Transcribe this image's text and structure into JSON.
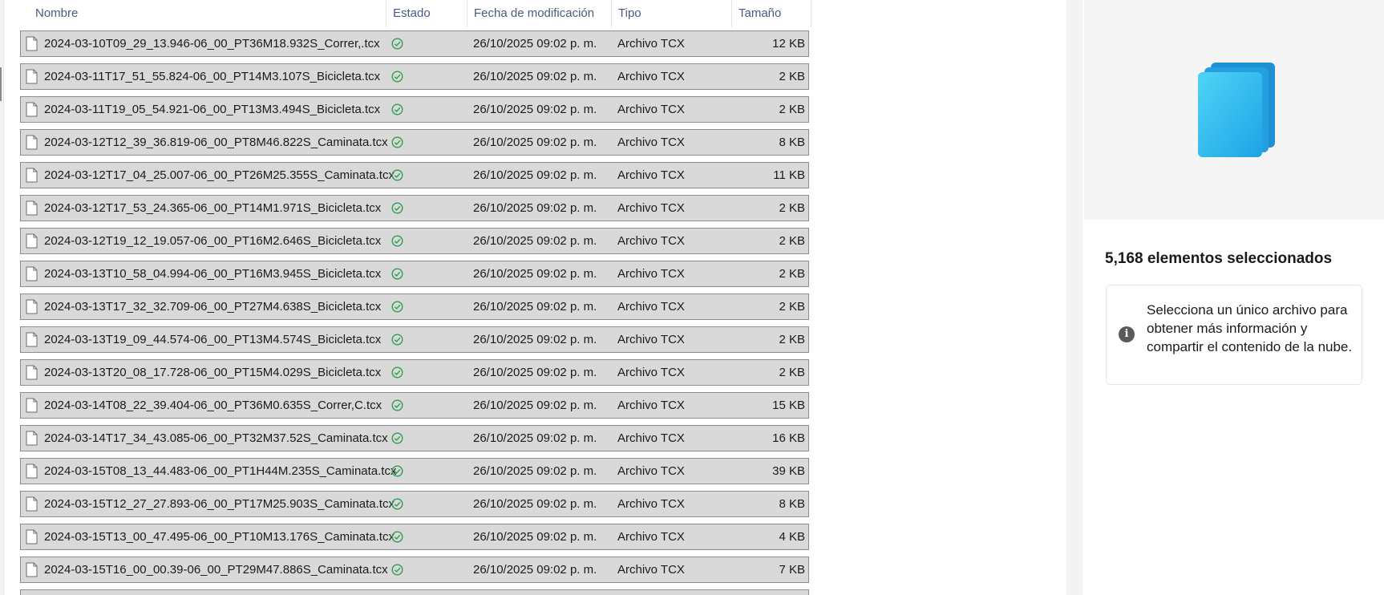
{
  "columns": {
    "name": "Nombre",
    "status": "Estado",
    "modified": "Fecha de modificación",
    "type": "Tipo",
    "size": "Tamaño"
  },
  "files": [
    {
      "name": "2024-03-10T09_29_13.946-06_00_PT36M18.932S_Correr,.tcx",
      "modified": "26/10/2025 09:02 p. m.",
      "type": "Archivo TCX",
      "size": "12 KB",
      "status": "synced-check-icon"
    },
    {
      "name": "2024-03-11T17_51_55.824-06_00_PT14M3.107S_Bicicleta.tcx",
      "modified": "26/10/2025 09:02 p. m.",
      "type": "Archivo TCX",
      "size": "2 KB",
      "status": "synced-check-icon"
    },
    {
      "name": "2024-03-11T19_05_54.921-06_00_PT13M3.494S_Bicicleta.tcx",
      "modified": "26/10/2025 09:02 p. m.",
      "type": "Archivo TCX",
      "size": "2 KB",
      "status": "synced-check-icon"
    },
    {
      "name": "2024-03-12T12_39_36.819-06_00_PT8M46.822S_Caminata.tcx",
      "modified": "26/10/2025 09:02 p. m.",
      "type": "Archivo TCX",
      "size": "8 KB",
      "status": "synced-check-icon"
    },
    {
      "name": "2024-03-12T17_04_25.007-06_00_PT26M25.355S_Caminata.tcx",
      "modified": "26/10/2025 09:02 p. m.",
      "type": "Archivo TCX",
      "size": "11 KB",
      "status": "synced-check-icon"
    },
    {
      "name": "2024-03-12T17_53_24.365-06_00_PT14M1.971S_Bicicleta.tcx",
      "modified": "26/10/2025 09:02 p. m.",
      "type": "Archivo TCX",
      "size": "2 KB",
      "status": "synced-check-icon"
    },
    {
      "name": "2024-03-12T19_12_19.057-06_00_PT16M2.646S_Bicicleta.tcx",
      "modified": "26/10/2025 09:02 p. m.",
      "type": "Archivo TCX",
      "size": "2 KB",
      "status": "synced-check-icon"
    },
    {
      "name": "2024-03-13T10_58_04.994-06_00_PT16M3.945S_Bicicleta.tcx",
      "modified": "26/10/2025 09:02 p. m.",
      "type": "Archivo TCX",
      "size": "2 KB",
      "status": "synced-check-icon"
    },
    {
      "name": "2024-03-13T17_32_32.709-06_00_PT27M4.638S_Bicicleta.tcx",
      "modified": "26/10/2025 09:02 p. m.",
      "type": "Archivo TCX",
      "size": "2 KB",
      "status": "synced-check-icon"
    },
    {
      "name": "2024-03-13T19_09_44.574-06_00_PT13M4.574S_Bicicleta.tcx",
      "modified": "26/10/2025 09:02 p. m.",
      "type": "Archivo TCX",
      "size": "2 KB",
      "status": "synced-check-icon"
    },
    {
      "name": "2024-03-13T20_08_17.728-06_00_PT15M4.029S_Bicicleta.tcx",
      "modified": "26/10/2025 09:02 p. m.",
      "type": "Archivo TCX",
      "size": "2 KB",
      "status": "synced-check-icon"
    },
    {
      "name": "2024-03-14T08_22_39.404-06_00_PT36M0.635S_Correr,C.tcx",
      "modified": "26/10/2025 09:02 p. m.",
      "type": "Archivo TCX",
      "size": "15 KB",
      "status": "synced-check-icon"
    },
    {
      "name": "2024-03-14T17_34_43.085-06_00_PT32M37.52S_Caminata.tcx",
      "modified": "26/10/2025 09:02 p. m.",
      "type": "Archivo TCX",
      "size": "16 KB",
      "status": "synced-check-icon"
    },
    {
      "name": "2024-03-15T08_13_44.483-06_00_PT1H44M.235S_Caminata.tcx",
      "modified": "26/10/2025 09:02 p. m.",
      "type": "Archivo TCX",
      "size": "39 KB",
      "status": "synced-check-icon"
    },
    {
      "name": "2024-03-15T12_27_27.893-06_00_PT17M25.903S_Caminata.tcx",
      "modified": "26/10/2025 09:02 p. m.",
      "type": "Archivo TCX",
      "size": "8 KB",
      "status": "synced-check-icon"
    },
    {
      "name": "2024-03-15T13_00_47.495-06_00_PT10M13.176S_Caminata.tcx",
      "modified": "26/10/2025 09:02 p. m.",
      "type": "Archivo TCX",
      "size": "4 KB",
      "status": "synced-check-icon"
    },
    {
      "name": "2024-03-15T16_00_00.39-06_00_PT29M47.886S_Caminata.tcx",
      "modified": "26/10/2025 09:02 p. m.",
      "type": "Archivo TCX",
      "size": "7 KB",
      "status": "synced-check-icon"
    },
    {
      "name": "",
      "modified": "",
      "type": "",
      "size": "",
      "status": ""
    }
  ],
  "details_pane": {
    "preview_icon": "multiple-files-icon",
    "selection_count": "5,168 elementos seleccionados",
    "info_icon": "info-icon",
    "info_message": "Selecciona un único archivo para obtener más información y compartir el contenido de la nube."
  },
  "colors": {
    "selected_row": "#d9d9d9",
    "row_border": "#8d8d8d",
    "header_text": "#4a5a80",
    "status_green": "#2e9e4e",
    "files_icon_blue": "#2bb8ec"
  }
}
